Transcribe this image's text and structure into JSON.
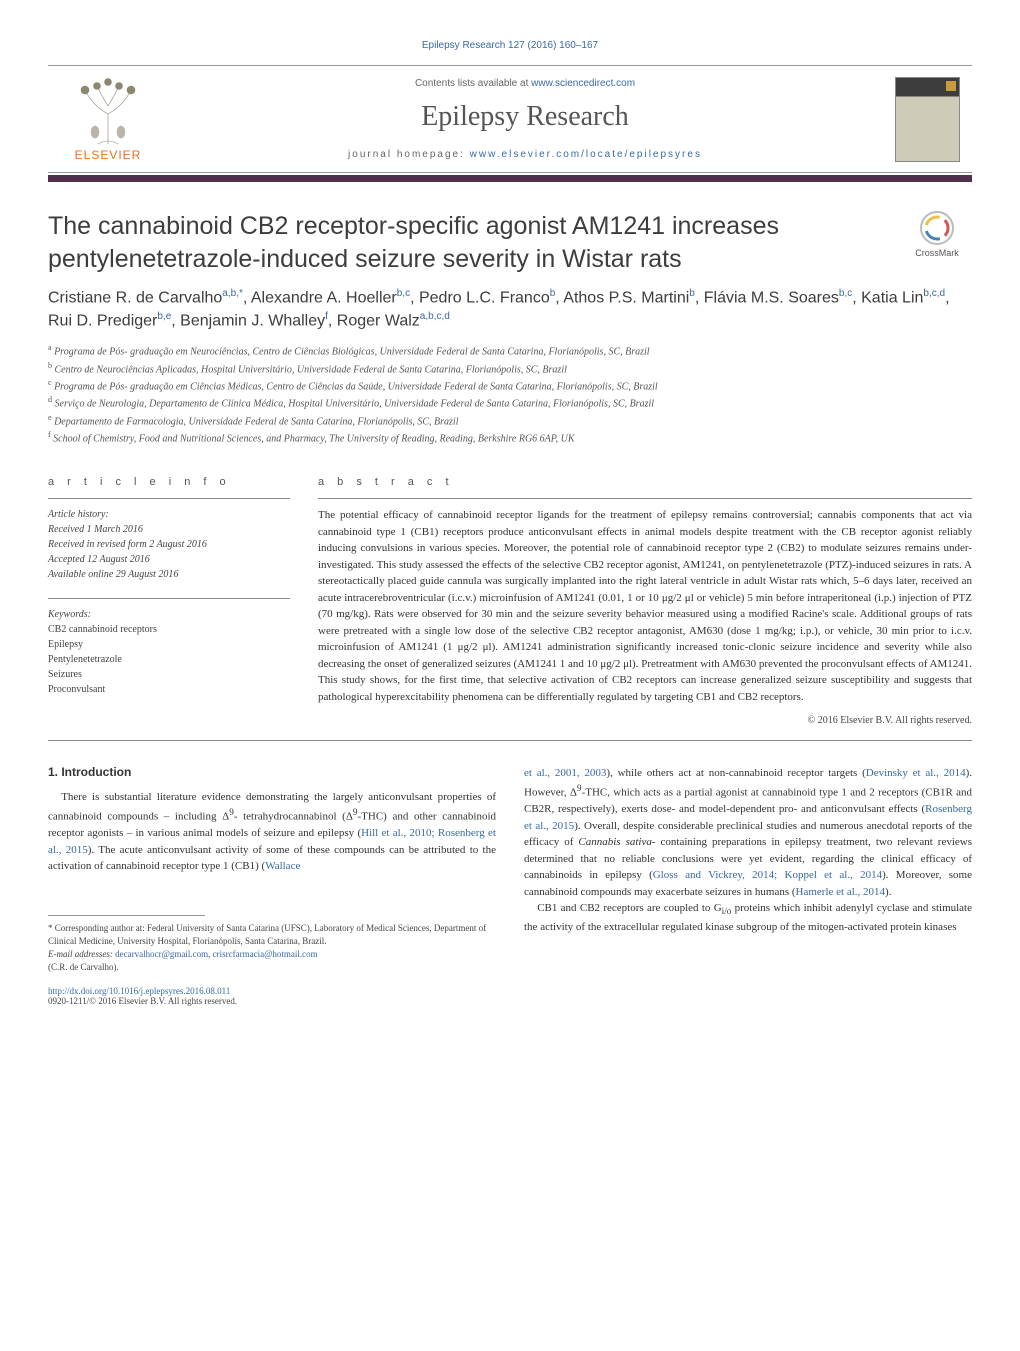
{
  "citation": "Epilepsy Research 127 (2016) 160–167",
  "masthead": {
    "elsevier": "ELSEVIER",
    "contents_prefix": "Contents lists available at ",
    "contents_link": "www.sciencedirect.com",
    "journal_name": "Epilepsy Research",
    "homepage_prefix": "journal homepage: ",
    "homepage_link": "www.elsevier.com/locate/epilepsyres"
  },
  "colors": {
    "rule_bar": "#52304d",
    "link": "#3869a8",
    "elsevier_orange": "#e9711c"
  },
  "title": "The cannabinoid CB2 receptor-specific agonist AM1241 increases pentylenetetrazole-induced seizure severity in Wistar rats",
  "crossmark": "CrossMark",
  "authors_html": "Cristiane R. de Carvalho<sup>a,b,*</sup>, Alexandre A. Hoeller<sup>b,c</sup>, Pedro L.C. Franco<sup>b</sup>, Athos P.S. Martini<sup>b</sup>, Flávia M.S. Soares<sup>b,c</sup>, Katia Lin<sup>b,c,d</sup>, Rui D. Prediger<sup>b,e</sup>, Benjamin J. Whalley<sup>f</sup>, Roger Walz<sup>a,b,c,d</sup>",
  "affiliations": [
    "Programa de Pós- graduação em Neurociências, Centro de Ciências Biológicas, Universidade Federal de Santa Catarina, Florianópolis, SC, Brazil",
    "Centro de Neurociências Aplicadas, Hospital Universitário, Universidade Federal de Santa Catarina, Florianópolis, SC, Brazil",
    "Programa de Pós- graduação em Ciências Médicas, Centro de Ciências da Saúde, Universidade Federal de Santa Catarina, Florianópolis, SC, Brazil",
    "Serviço de Neurologia, Departamento de Clínica Médica, Hospital Universitário, Universidade Federal de Santa Catarina, Florianópolis, SC, Brazil",
    "Departamento de Farmacologia, Universidade Federal de Santa Catarina, Florianópolis, SC, Brazil",
    "School of Chemistry, Food and Nutritional Sciences, and Pharmacy, The University of Reading, Reading, Berkshire RG6 6AP, UK"
  ],
  "aff_markers": [
    "a",
    "b",
    "c",
    "d",
    "e",
    "f"
  ],
  "info_label": "a r t i c l e   i n f o",
  "abstract_label": "a b s t r a c t",
  "history": {
    "label": "Article history:",
    "received": "Received 1 March 2016",
    "revised": "Received in revised form 2 August 2016",
    "accepted": "Accepted 12 August 2016",
    "online": "Available online 29 August 2016"
  },
  "keywords": {
    "label": "Keywords:",
    "items": [
      "CB2 cannabinoid receptors",
      "Epilepsy",
      "Pentylenetetrazole",
      "Seizures",
      "Proconvulsant"
    ]
  },
  "abstract": "The potential efficacy of cannabinoid receptor ligands for the treatment of epilepsy remains controversial; cannabis components that act via cannabinoid type 1 (CB1) receptors produce anticonvulsant effects in animal models despite treatment with the CB receptor agonist reliably inducing convulsions in various species. Moreover, the potential role of cannabinoid receptor type 2 (CB2) to modulate seizures remains under-investigated. This study assessed the effects of the selective CB2 receptor agonist, AM1241, on pentylenetetrazole (PTZ)-induced seizures in rats. A stereotactically placed guide cannula was surgically implanted into the right lateral ventricle in adult Wistar rats which, 5–6 days later, received an acute intracerebroventricular (i.c.v.) microinfusion of AM1241 (0.01, 1 or 10 μg/2 μl or vehicle) 5 min before intraperitoneal (i.p.) injection of PTZ (70 mg/kg). Rats were observed for 30 min and the seizure severity behavior measured using a modified Racine's scale. Additional groups of rats were pretreated with a single low dose of the selective CB2 receptor antagonist, AM630 (dose 1 mg/kg; i.p.), or vehicle, 30 min prior to i.c.v. microinfusion of AM1241 (1 μg/2 μl). AM1241 administration significantly increased tonic-clonic seizure incidence and severity while also decreasing the onset of generalized seizures (AM1241 1 and 10 μg/2 μl). Pretreatment with AM630 prevented the proconvulsant effects of AM1241. This study shows, for the first time, that selective activation of CB2 receptors can increase generalized seizure susceptibility and suggests that pathological hyperexcitability phenomena can be differentially regulated by targeting CB1 and CB2 receptors.",
  "copyright": "© 2016 Elsevier B.V. All rights reserved.",
  "intro_heading": "1. Introduction",
  "intro_col1_html": "There is substantial literature evidence demonstrating the largely anticonvulsant properties of cannabinoid compounds – including Δ<sup>9</sup>- tetrahydrocannabinol (Δ<sup>9</sup>-THC) and other cannabinoid receptor agonists – in various animal models of seizure and epilepsy (<span class=\"cite\">Hill et al., 2010; Rosenberg et al., 2015</span>). The acute anticonvulsant activity of some of these compounds can be attributed to the activation of cannabinoid receptor type 1 (CB1) (<span class=\"cite\">Wallace</span>",
  "intro_col2_html": "<span class=\"cite\">et al., 2001, 2003</span>), while others act at non-cannabinoid receptor targets (<span class=\"cite\">Devinsky et al., 2014</span>). However, Δ<sup>9</sup>-THC, which acts as a partial agonist at cannabinoid type 1 and 2 receptors (CB1R and CB2R, respectively), exerts dose- and model-dependent pro- and anticonvulsant effects (<span class=\"cite\">Rosenberg et al., 2015</span>). Overall, despite considerable preclinical studies and numerous anecdotal reports of the efficacy of <i>Cannabis sativa</i>- containing preparations in epilepsy treatment, two relevant reviews determined that no reliable conclusions were yet evident, regarding the clinical efficacy of cannabinoids in epilepsy (<span class=\"cite\">Gloss and Vickrey, 2014; Koppel et al., 2014</span>). Moreover, some cannabinoid compounds may exacerbate seizures in humans (<span class=\"cite\">Hamerle et al., 2014</span>).",
  "intro_col2_p2_html": "CB1 and CB2 receptors are coupled to G<sub>i/o</sub> proteins which inhibit adenylyl cyclase and stimulate the activity of the extracellular regulated kinase subgroup of the mitogen-activated protein kinases",
  "footnotes": {
    "corr_label": "* Corresponding author at:",
    "corr_text": " Federal University of Santa Catarina (UFSC), Laboratory of Medical Sciences, Department of Clinical Medicine, University Hospital, Florianópolis, Santa Catarina, Brazil.",
    "email_label": "E-mail addresses: ",
    "emails": [
      "decarvalhocr@gmail.com",
      "crisrcfarmacia@hotmail.com"
    ],
    "email_whom": "(C.R. de Carvalho)."
  },
  "doi": {
    "link": "http://dx.doi.org/10.1016/j.eplepsyres.2016.08.011",
    "issn_line": "0920-1211/© 2016 Elsevier B.V. All rights reserved."
  }
}
